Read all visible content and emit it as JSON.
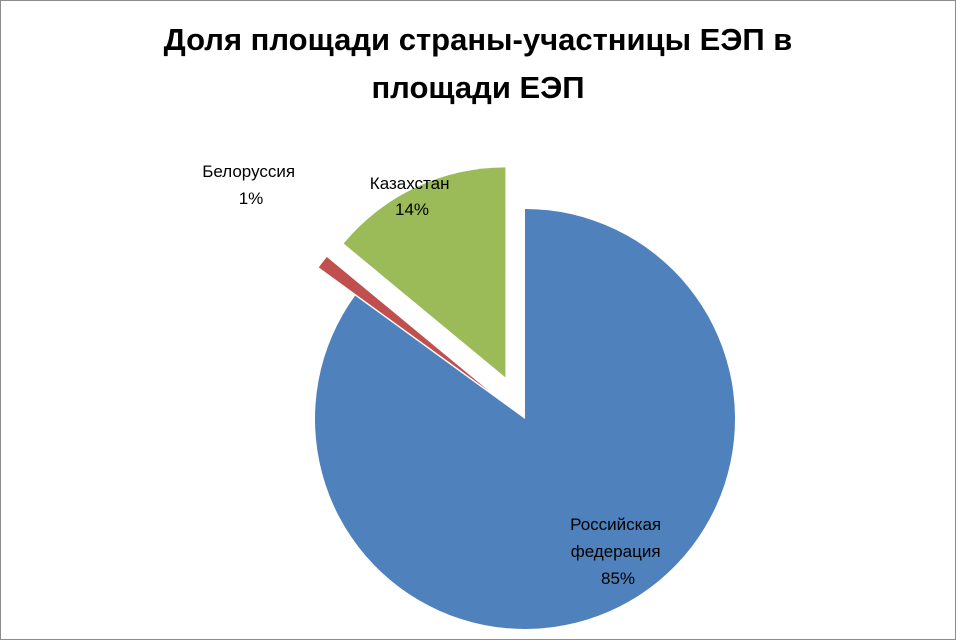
{
  "chart_data": {
    "type": "pie",
    "title_lines": [
      "Доля площади страны-участницы ЕЭП в",
      "площади ЕЭП"
    ],
    "slices": [
      {
        "name": "Российская федерация",
        "label_lines": [
          "Российская",
          "федерация"
        ],
        "value": 85,
        "value_label": "85%",
        "color": "#4f81bd",
        "exploded": false
      },
      {
        "name": "Белоруссия",
        "label_lines": [
          "Белоруссия"
        ],
        "value": 1,
        "value_label": "1%",
        "color": "#c0504d",
        "exploded": true
      },
      {
        "name": "Казахстан",
        "label_lines": [
          "Казахстан"
        ],
        "value": 14,
        "value_label": "14%",
        "color": "#9bbb59",
        "exploded": true
      }
    ],
    "legend": "none",
    "data_labels": "category name and percentage"
  }
}
